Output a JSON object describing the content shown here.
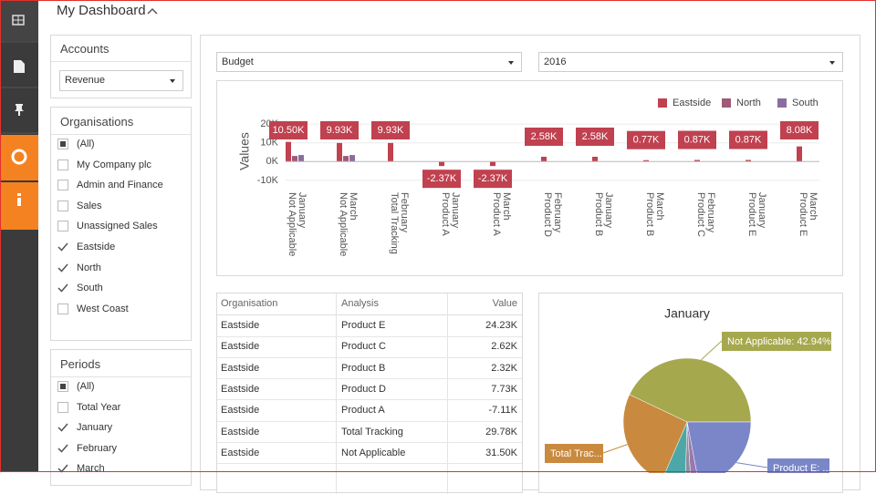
{
  "header": {
    "title": "My Dashboard"
  },
  "accounts": {
    "title": "Accounts",
    "selected": "Revenue"
  },
  "organisations": {
    "title": "Organisations",
    "items": [
      {
        "label": "(All)",
        "state": "partial"
      },
      {
        "label": "My Company plc",
        "state": "unchecked"
      },
      {
        "label": "Admin and Finance",
        "state": "unchecked"
      },
      {
        "label": "Sales",
        "state": "unchecked"
      },
      {
        "label": "Unassigned Sales",
        "state": "unchecked"
      },
      {
        "label": "Eastside",
        "state": "checked"
      },
      {
        "label": "North",
        "state": "checked"
      },
      {
        "label": "South",
        "state": "checked"
      },
      {
        "label": "West Coast",
        "state": "unchecked"
      }
    ]
  },
  "periods": {
    "title": "Periods",
    "items": [
      {
        "label": "(All)",
        "state": "partial"
      },
      {
        "label": "Total Year",
        "state": "unchecked"
      },
      {
        "label": "January",
        "state": "checked"
      },
      {
        "label": "February",
        "state": "checked"
      },
      {
        "label": "March",
        "state": "checked"
      }
    ]
  },
  "filters": {
    "measure": "Budget",
    "year": "2016"
  },
  "chart_data": [
    {
      "type": "bar",
      "y_label": "Values",
      "categories": [
        [
          "January",
          "Not Applicable"
        ],
        [
          "March",
          "Not Applicable"
        ],
        [
          "February",
          "Total Tracking"
        ],
        [
          "January",
          "Product A"
        ],
        [
          "March",
          "Product A"
        ],
        [
          "February",
          "Product D"
        ],
        [
          "January",
          "Product B"
        ],
        [
          "March",
          "Product B"
        ],
        [
          "February",
          "Product C"
        ],
        [
          "January",
          "Product E"
        ],
        [
          "March",
          "Product E"
        ]
      ],
      "series": [
        {
          "name": "Eastside",
          "color": "#c0414f",
          "values": [
            10500,
            9930,
            9930,
            -2370,
            -2370,
            2580,
            2580,
            770,
            870,
            870,
            8080
          ],
          "value_labels": [
            "10.50K",
            "9.93K",
            "9.93K",
            "-2.37K",
            "-2.37K",
            "2.58K",
            "2.58K",
            "0.77K",
            "0.87K",
            "0.87K",
            "8.08K"
          ]
        },
        {
          "name": "North",
          "color": "#9e5a78",
          "values": [
            3000,
            3000,
            0,
            0,
            0,
            0,
            0,
            0,
            0,
            0,
            0
          ]
        },
        {
          "name": "South",
          "color": "#8a6d9e",
          "values": [
            3500,
            3500,
            0,
            0,
            0,
            0,
            0,
            0,
            0,
            0,
            0
          ]
        }
      ],
      "ylim": [
        -12000,
        22000
      ],
      "yticks": [
        {
          "value": 20000,
          "label": "20K"
        },
        {
          "value": 10000,
          "label": "10K"
        },
        {
          "value": 0,
          "label": "0K"
        },
        {
          "value": -10000,
          "label": "-10K"
        }
      ],
      "grid": true,
      "legend": "top-right"
    },
    {
      "type": "pie",
      "title": "January",
      "categories": [
        "Not Applicable: 42.94%",
        "Product E: ...",
        null,
        null,
        null,
        "Total Trac..."
      ],
      "values": [
        42.94,
        22,
        2,
        1.5,
        6,
        25.56
      ],
      "colors": [
        "#a6a84e",
        "#7a86c8",
        "#9b77b0",
        "#8e8e9e",
        "#4da7a6",
        "#c98a3f"
      ]
    }
  ],
  "table": {
    "columns": [
      "Organisation",
      "Analysis",
      "Value"
    ],
    "rows": [
      [
        "Eastside",
        "Product E",
        "24.23K"
      ],
      [
        "Eastside",
        "Product C",
        "2.62K"
      ],
      [
        "Eastside",
        "Product B",
        "2.32K"
      ],
      [
        "Eastside",
        "Product D",
        "7.73K"
      ],
      [
        "Eastside",
        "Product A",
        "-7.11K"
      ],
      [
        "Eastside",
        "Total Tracking",
        "29.78K"
      ],
      [
        "Eastside",
        "Not Applicable",
        "31.50K"
      ]
    ]
  }
}
